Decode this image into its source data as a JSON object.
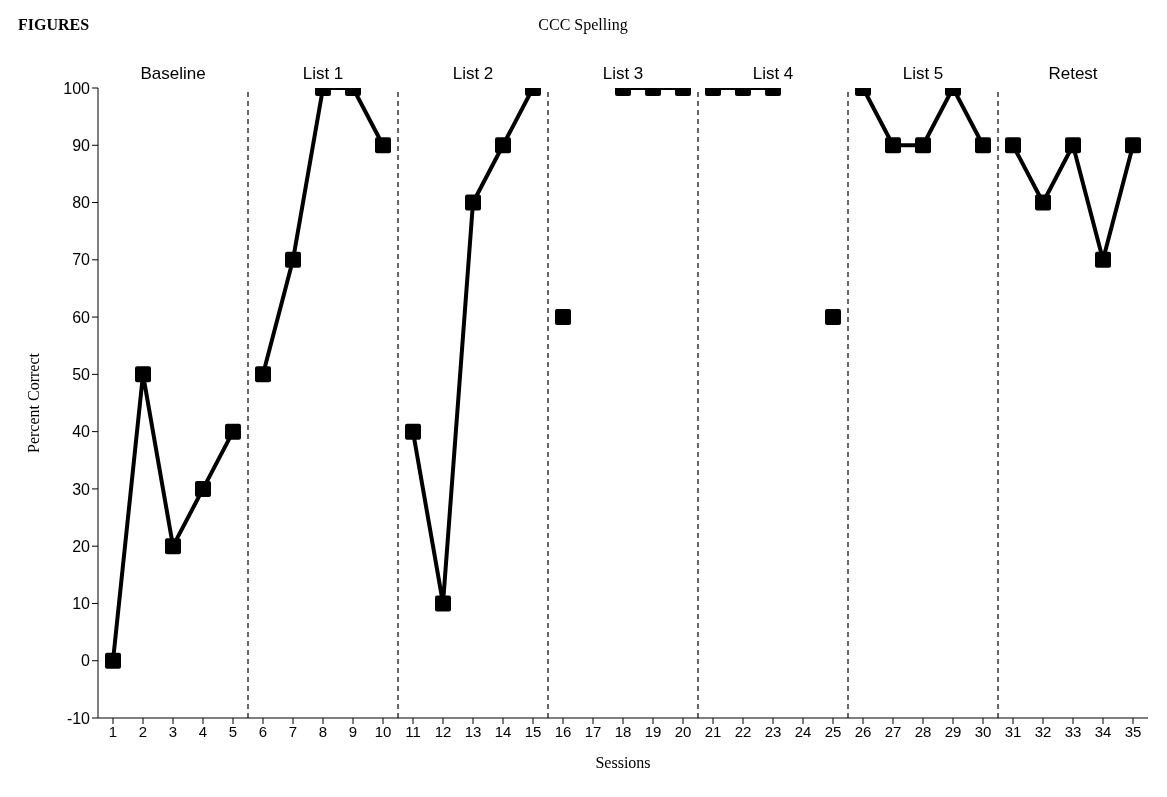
{
  "chart_data": {
    "type": "line",
    "title": "CCC Spelling",
    "xlabel": "Sessions",
    "ylabel": "Percent Correct",
    "annotations": [
      "FIGURES",
      "Baseline",
      "List 1",
      "List 2",
      "List 3",
      "List 4",
      "List 5",
      "Retest"
    ],
    "x": [
      1,
      2,
      3,
      4,
      5,
      6,
      7,
      8,
      9,
      10,
      11,
      12,
      13,
      14,
      15,
      16,
      17,
      18,
      19,
      20,
      21,
      22,
      23,
      24,
      25,
      26,
      27,
      28,
      29,
      30,
      31,
      32,
      33,
      34,
      35
    ],
    "series": [
      {
        "color": "#000000",
        "values": [
          0,
          50,
          20,
          30,
          40,
          null,
          null,
          null,
          null,
          null,
          null,
          null,
          null,
          null,
          null,
          null,
          null,
          null,
          null,
          null,
          null,
          null,
          null,
          null,
          null,
          null,
          null,
          null,
          null,
          null,
          null,
          null,
          null,
          null,
          null
        ]
      },
      {
        "color": "#000000",
        "values": [
          null,
          null,
          null,
          null,
          null,
          50,
          70,
          100,
          100,
          90,
          null,
          null,
          null,
          null,
          null,
          null,
          null,
          null,
          null,
          null,
          null,
          null,
          null,
          null,
          null,
          null,
          null,
          null,
          null,
          null,
          null,
          null,
          null,
          null,
          null
        ]
      },
      {
        "color": "#000000",
        "values": [
          null,
          null,
          null,
          null,
          null,
          null,
          null,
          null,
          null,
          null,
          40,
          10,
          80,
          90,
          100,
          null,
          null,
          null,
          null,
          null,
          null,
          null,
          null,
          null,
          null,
          null,
          null,
          null,
          null,
          null,
          null,
          null,
          null,
          null,
          null
        ]
      },
      {
        "color": "#000000",
        "values": [
          null,
          null,
          null,
          null,
          null,
          null,
          null,
          null,
          null,
          null,
          null,
          null,
          null,
          null,
          null,
          60,
          null,
          100,
          100,
          100,
          null,
          null,
          null,
          null,
          null,
          null,
          null,
          null,
          null,
          null,
          null,
          null,
          null,
          null,
          null
        ]
      },
      {
        "color": "#000000",
        "values": [
          null,
          null,
          null,
          null,
          null,
          null,
          null,
          null,
          null,
          null,
          null,
          null,
          null,
          null,
          null,
          null,
          null,
          null,
          null,
          null,
          100,
          100,
          100,
          null,
          60,
          null,
          null,
          null,
          null,
          null,
          null,
          null,
          null,
          null,
          null
        ]
      },
      {
        "color": "#000000",
        "values": [
          null,
          null,
          null,
          null,
          null,
          null,
          null,
          null,
          null,
          null,
          null,
          null,
          null,
          null,
          null,
          null,
          null,
          null,
          null,
          null,
          null,
          null,
          null,
          null,
          null,
          100,
          90,
          90,
          100,
          90,
          null,
          null,
          null,
          null,
          null
        ]
      },
      {
        "color": "#000000",
        "values": [
          null,
          null,
          null,
          null,
          null,
          null,
          null,
          null,
          null,
          null,
          null,
          null,
          null,
          null,
          null,
          null,
          null,
          null,
          null,
          null,
          null,
          null,
          null,
          null,
          null,
          null,
          null,
          null,
          null,
          null,
          90,
          80,
          90,
          70,
          90
        ]
      }
    ],
    "xlim": [
      0.5,
      35.5
    ],
    "xticks": [
      1,
      2,
      3,
      4,
      5,
      6,
      7,
      8,
      9,
      10,
      11,
      12,
      13,
      14,
      15,
      16,
      17,
      18,
      19,
      20,
      21,
      22,
      23,
      24,
      25,
      26,
      27,
      28,
      29,
      30,
      31,
      32,
      33,
      34,
      35
    ],
    "ylim": [
      -10,
      100
    ],
    "yticks": [
      -10,
      0,
      10,
      20,
      30,
      40,
      50,
      60,
      70,
      80,
      90,
      100
    ],
    "ref_lines": [
      {
        "axis": "x",
        "value": 5.5,
        "line_style": "dashed",
        "color": "#000000"
      },
      {
        "axis": "x",
        "value": 10.5,
        "line_style": "dashed",
        "color": "#000000"
      },
      {
        "axis": "x",
        "value": 15.5,
        "line_style": "dashed",
        "color": "#000000"
      },
      {
        "axis": "x",
        "value": 20.5,
        "line_style": "dashed",
        "color": "#000000"
      },
      {
        "axis": "x",
        "value": 25.5,
        "line_style": "dashed",
        "color": "#000000"
      },
      {
        "axis": "x",
        "value": 30.5,
        "line_style": "dashed",
        "color": "#000000"
      }
    ],
    "marker": "square",
    "line_style": "solid",
    "grid": false
  }
}
